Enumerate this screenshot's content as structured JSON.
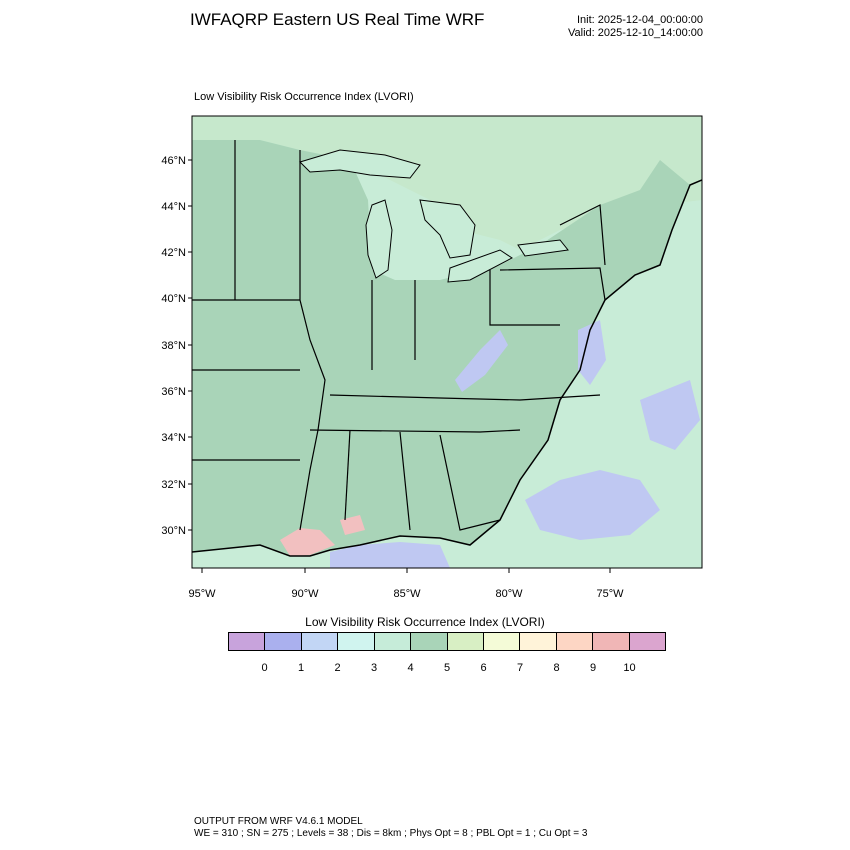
{
  "header": {
    "title": "IWFAQRP Eastern US Real Time WRF",
    "init": "Init: 2025-12-04_00:00:00",
    "valid": "Valid: 2025-12-10_14:00:00"
  },
  "plot_title": "Low Visibility Risk Occurrence Index   (LVORI)",
  "map": {
    "lat_labels": [
      "46°N",
      "44°N",
      "42°N",
      "40°N",
      "38°N",
      "36°N",
      "34°N",
      "32°N",
      "30°N"
    ],
    "lon_labels": [
      "95°W",
      "90°W",
      "85°W",
      "80°W",
      "75°W"
    ],
    "colors": {
      "land": "#a9d4b8",
      "water": "#c8ecd7",
      "canada": "#c6e8cc",
      "low_vis": "#bfc8f2",
      "high_vis": "#f2c0c0",
      "border": "#000000"
    }
  },
  "colorbar": {
    "title": "Low Visibility Risk Occurrence Index  (LVORI)",
    "colors": [
      "#c8a3dc",
      "#aab0ee",
      "#c2d6f5",
      "#d0f4ef",
      "#c6ecd9",
      "#a9d4b8",
      "#d8efc4",
      "#f4fbd7",
      "#fff3d9",
      "#fdd6c4",
      "#f0b6b6",
      "#dba5cf"
    ],
    "labels": [
      "0",
      "1",
      "2",
      "3",
      "4",
      "5",
      "6",
      "7",
      "8",
      "9",
      "10"
    ]
  },
  "footer": {
    "line1": "OUTPUT FROM WRF V4.6.1 MODEL",
    "line2": "WE = 310 ; SN = 275 ; Levels = 38 ; Dis = 8km ; Phys Opt = 8 ; PBL Opt = 1 ; Cu Opt = 3"
  }
}
